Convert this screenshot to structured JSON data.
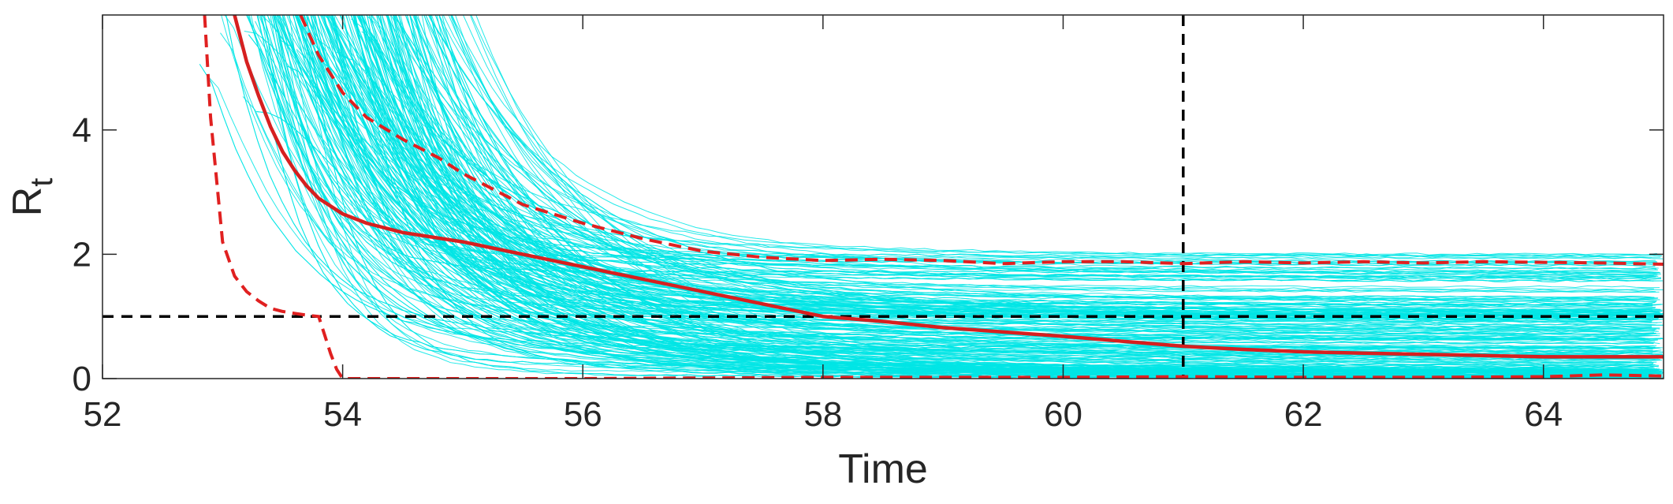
{
  "chart_data": {
    "type": "line",
    "xlabel": "Time",
    "ylabel": "R",
    "ylabel_subscript": "t",
    "xlim": [
      52,
      65
    ],
    "ylim": [
      0,
      5.85
    ],
    "xticks": [
      52,
      54,
      56,
      58,
      60,
      62,
      64
    ],
    "yticks": [
      0,
      2,
      4
    ],
    "grid": false,
    "colors": {
      "ensemble": "#00e5e5",
      "median": "#d62020",
      "bounds": "#e02020",
      "reference": "#000000",
      "axis": "#262626"
    },
    "reference_lines": {
      "horizontal_y": 1,
      "vertical_x": 61
    },
    "ensemble": {
      "description_count": 300
    },
    "series": [
      {
        "role": "median",
        "style": "solid",
        "x": [
          53.1,
          53.2,
          53.3,
          53.4,
          53.5,
          53.6,
          53.7,
          53.8,
          54.0,
          54.2,
          54.5,
          55.0,
          55.5,
          56.0,
          56.5,
          57.0,
          57.5,
          58.0,
          58.5,
          59.0,
          59.5,
          60.0,
          60.5,
          61.0,
          61.5,
          62.0,
          62.5,
          63.0,
          63.5,
          64.0,
          64.5,
          65.0
        ],
        "y": [
          5.85,
          5.1,
          4.55,
          4.05,
          3.65,
          3.35,
          3.1,
          2.9,
          2.65,
          2.5,
          2.35,
          2.2,
          2.0,
          1.8,
          1.6,
          1.4,
          1.2,
          1.0,
          0.92,
          0.82,
          0.75,
          0.68,
          0.6,
          0.52,
          0.47,
          0.43,
          0.41,
          0.39,
          0.37,
          0.35,
          0.35,
          0.35
        ]
      },
      {
        "role": "upper-bound",
        "style": "dashed",
        "x": [
          53.65,
          53.8,
          54.0,
          54.2,
          54.5,
          54.8,
          55.0,
          55.5,
          56.0,
          56.5,
          57.0,
          57.5,
          58.0,
          58.5,
          59.0,
          59.5,
          60.0,
          60.5,
          61.0,
          61.5,
          62.0,
          62.5,
          63.0,
          63.5,
          64.0,
          64.5,
          65.0
        ],
        "y": [
          5.85,
          5.2,
          4.6,
          4.2,
          3.85,
          3.55,
          3.3,
          2.8,
          2.5,
          2.25,
          2.05,
          1.95,
          1.9,
          1.92,
          1.9,
          1.85,
          1.88,
          1.88,
          1.85,
          1.88,
          1.86,
          1.88,
          1.86,
          1.88,
          1.87,
          1.86,
          1.84
        ]
      },
      {
        "role": "lower-bound",
        "style": "dashed",
        "x": [
          52.85,
          52.9,
          53.0,
          53.1,
          53.2,
          53.3,
          53.4,
          53.5,
          53.6,
          53.7,
          53.8,
          53.85,
          53.9,
          53.95,
          54.0,
          56.0,
          58.0,
          60.0,
          61.0,
          62.0,
          63.0,
          64.0,
          64.5,
          65.0
        ],
        "y": [
          5.85,
          4.2,
          2.2,
          1.65,
          1.4,
          1.25,
          1.13,
          1.08,
          1.05,
          1.02,
          1.0,
          0.7,
          0.4,
          0.15,
          0.0,
          0.0,
          0.02,
          0.02,
          0.03,
          0.02,
          0.02,
          0.03,
          0.06,
          0.04
        ]
      }
    ]
  }
}
